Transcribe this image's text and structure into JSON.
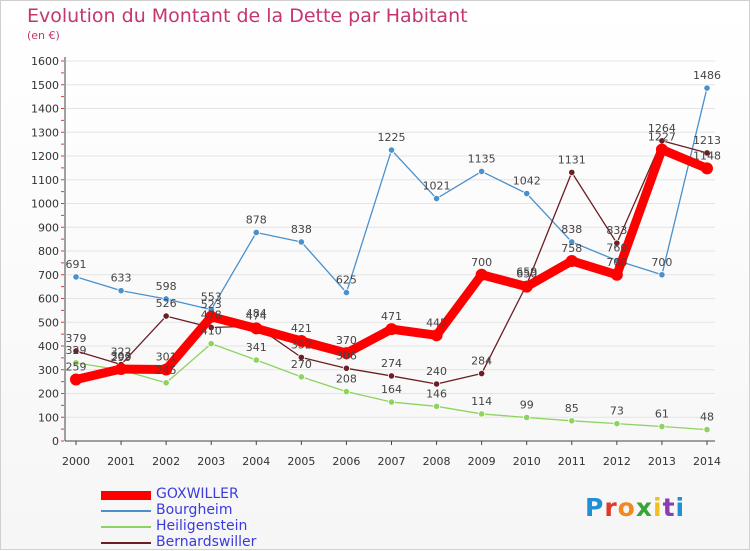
{
  "title": "Evolution du Montant de la Dette par Habitant",
  "subtitle": "(en €)",
  "logo": "Proxiti",
  "logo_colors": [
    "#1f8fd6",
    "#e3372b",
    "#f08a1c",
    "#3aa536",
    "#f2c01e",
    "#8a3fb0",
    "#1f8fd6"
  ],
  "chart_data": {
    "type": "line",
    "title": "Evolution du Montant de la Dette par Habitant",
    "ylabel": "(en €)",
    "xlabel": "",
    "x": [
      "2000",
      "2001",
      "2002",
      "2003",
      "2004",
      "2005",
      "2006",
      "2007",
      "2008",
      "2009",
      "2010",
      "2011",
      "2012",
      "2013",
      "2014"
    ],
    "ylim": [
      0,
      1600
    ],
    "yticks": [
      "0",
      "100",
      "200",
      "300",
      "400",
      "500",
      "600",
      "700",
      "800",
      "900",
      "1000",
      "1100",
      "1200",
      "1300",
      "1400",
      "1500",
      "1600"
    ],
    "grid": true,
    "legend_position": "bottom-left",
    "series": [
      {
        "name": "GOXWILLER",
        "color": "#ff0000",
        "emphasis": true,
        "values": [
          259,
          303,
          301,
          523,
          474,
          421,
          370,
          471,
          445,
          700,
          650,
          758,
          700,
          1227,
          1148
        ]
      },
      {
        "name": "Bourgheim",
        "color": "#4a90cc",
        "values": [
          691,
          633,
          598,
          553,
          878,
          838,
          625,
          1225,
          1021,
          1135,
          1042,
          838,
          760,
          700,
          1486
        ]
      },
      {
        "name": "Heiligenstein",
        "color": "#8dd35f",
        "values": [
          329,
          299,
          245,
          410,
          341,
          270,
          208,
          164,
          146,
          114,
          99,
          85,
          73,
          61,
          48
        ]
      },
      {
        "name": "Bernardswiller",
        "color": "#6b1e23",
        "values": [
          379,
          322,
          526,
          478,
          484,
          352,
          306,
          274,
          240,
          284,
          659,
          1131,
          833,
          1264,
          1213
        ]
      }
    ]
  }
}
